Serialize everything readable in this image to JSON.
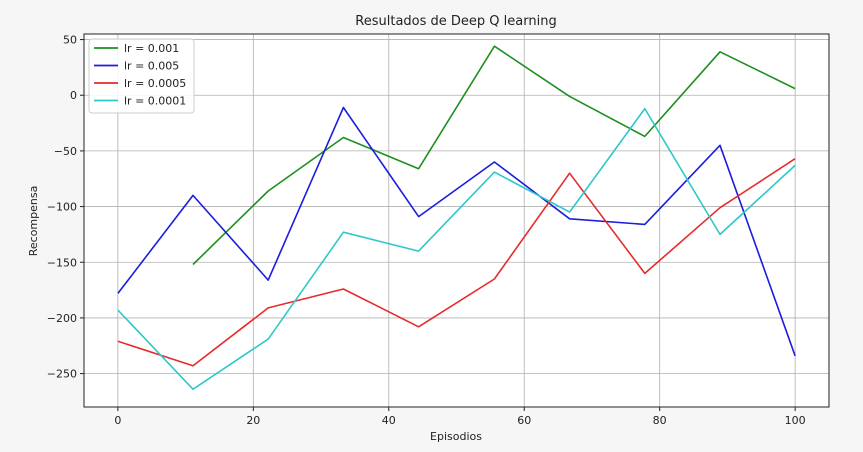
{
  "chart_data": {
    "type": "line",
    "title": "Resultados de Deep Q learning",
    "xlabel": "Episodios",
    "ylabel": "Recompensa",
    "xlim": [
      -5,
      105
    ],
    "ylim": [
      -280,
      55
    ],
    "xticks": [
      0,
      20,
      40,
      60,
      80,
      100
    ],
    "yticks": [
      50,
      0,
      -50,
      -100,
      -150,
      -200,
      -250
    ],
    "grid": true,
    "legend_position": "top-left",
    "series": [
      {
        "name": "lr = 0.001",
        "color": "#1e8f1e",
        "x": [
          11.1,
          22.2,
          33.3,
          44.4,
          55.6,
          66.7,
          77.8,
          88.9,
          100
        ],
        "y": [
          -152,
          -86,
          -38,
          -66,
          44,
          -1,
          -37,
          39,
          6
        ]
      },
      {
        "name": "lr = 0.005",
        "color": "#1c1ce0",
        "x": [
          0,
          11.1,
          22.2,
          33.3,
          44.4,
          55.6,
          66.7,
          77.8,
          88.9,
          100
        ],
        "y": [
          -178,
          -90,
          -166,
          -11,
          -109,
          -60,
          -111,
          -116,
          -45,
          -234
        ]
      },
      {
        "name": "lr = 0.0005",
        "color": "#e82a2a",
        "x": [
          0,
          11.1,
          22.2,
          33.3,
          44.4,
          55.6,
          66.7,
          77.8,
          88.9,
          100
        ],
        "y": [
          -221,
          -243,
          -191,
          -174,
          -208,
          -165,
          -70,
          -160,
          -101,
          -57
        ]
      },
      {
        "name": "lr = 0.0001",
        "color": "#2ec8c8",
        "x": [
          0,
          11.1,
          22.2,
          33.3,
          44.4,
          55.6,
          66.7,
          77.8,
          88.9,
          100
        ],
        "y": [
          -193,
          -264,
          -219,
          -123,
          -140,
          -69,
          -105,
          -12,
          -125,
          -63
        ]
      }
    ]
  }
}
